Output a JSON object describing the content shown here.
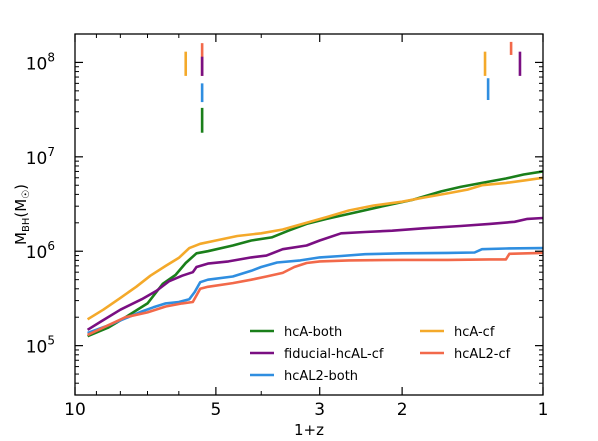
{
  "chart_data": {
    "type": "line",
    "xlabel": "1+z",
    "ylabel_main": "M",
    "ylabel_sub": "BH",
    "ylabel_unit": "(M",
    "ylabel_sun": "☉",
    "ylabel_close": ")",
    "x_scale": "log-reversed",
    "y_scale": "log",
    "xlim": [
      10,
      1
    ],
    "ylim": [
      30000,
      200000000
    ],
    "x_ticks": [
      {
        "value": 10,
        "label": "10"
      },
      {
        "value": 5,
        "label": "5"
      },
      {
        "value": 3,
        "label": "3"
      },
      {
        "value": 2,
        "label": "2"
      },
      {
        "value": 1,
        "label": "1"
      }
    ],
    "y_ticks": [
      {
        "value": 100000,
        "base": "10",
        "exp": "5"
      },
      {
        "value": 1000000,
        "base": "10",
        "exp": "6"
      },
      {
        "value": 10000000,
        "base": "10",
        "exp": "7"
      },
      {
        "value": 100000000,
        "base": "10",
        "exp": "8"
      }
    ],
    "grid": false,
    "legend_position": "lower-right",
    "series": [
      {
        "name": "hcA-both",
        "color": "#1a7f1a",
        "points": [
          [
            9.4,
            126000
          ],
          [
            8.5,
            155000
          ],
          [
            7.8,
            200000
          ],
          [
            7.0,
            280000
          ],
          [
            6.5,
            450000
          ],
          [
            6.1,
            560000
          ],
          [
            5.8,
            750000
          ],
          [
            5.5,
            950000
          ],
          [
            5.2,
            1000000
          ],
          [
            4.6,
            1150000
          ],
          [
            4.2,
            1300000
          ],
          [
            3.8,
            1400000
          ],
          [
            3.5,
            1650000
          ],
          [
            3.2,
            1950000
          ],
          [
            2.9,
            2200000
          ],
          [
            2.5,
            2600000
          ],
          [
            2.2,
            3000000
          ],
          [
            1.9,
            3500000
          ],
          [
            1.65,
            4300000
          ],
          [
            1.5,
            4800000
          ],
          [
            1.35,
            5300000
          ],
          [
            1.2,
            5900000
          ],
          [
            1.1,
            6500000
          ],
          [
            1.0,
            7000000
          ]
        ]
      },
      {
        "name": "fiducial-hcAL-cf",
        "color": "#7a0f82",
        "points": [
          [
            9.4,
            147000
          ],
          [
            8.8,
            180000
          ],
          [
            8.0,
            240000
          ],
          [
            7.2,
            310000
          ],
          [
            6.7,
            380000
          ],
          [
            6.3,
            480000
          ],
          [
            5.9,
            550000
          ],
          [
            5.6,
            600000
          ],
          [
            5.5,
            680000
          ],
          [
            5.2,
            740000
          ],
          [
            4.7,
            780000
          ],
          [
            4.2,
            860000
          ],
          [
            3.9,
            900000
          ],
          [
            3.6,
            1050000
          ],
          [
            3.2,
            1150000
          ],
          [
            3.0,
            1300000
          ],
          [
            2.7,
            1550000
          ],
          [
            2.4,
            1600000
          ],
          [
            2.1,
            1650000
          ],
          [
            1.8,
            1750000
          ],
          [
            1.5,
            1850000
          ],
          [
            1.3,
            1950000
          ],
          [
            1.15,
            2050000
          ],
          [
            1.08,
            2200000
          ],
          [
            1.0,
            2250000
          ]
        ]
      },
      {
        "name": "hcAL2-both",
        "color": "#2f8ee0",
        "points": [
          [
            9.4,
            136000
          ],
          [
            8.6,
            160000
          ],
          [
            7.8,
            195000
          ],
          [
            7.2,
            230000
          ],
          [
            6.8,
            255000
          ],
          [
            6.4,
            280000
          ],
          [
            6.0,
            290000
          ],
          [
            5.7,
            310000
          ],
          [
            5.55,
            370000
          ],
          [
            5.4,
            470000
          ],
          [
            5.2,
            500000
          ],
          [
            4.6,
            540000
          ],
          [
            4.2,
            620000
          ],
          [
            4.0,
            680000
          ],
          [
            3.7,
            760000
          ],
          [
            3.3,
            800000
          ],
          [
            3.0,
            860000
          ],
          [
            2.7,
            890000
          ],
          [
            2.4,
            930000
          ],
          [
            2.0,
            950000
          ],
          [
            1.6,
            960000
          ],
          [
            1.4,
            970000
          ],
          [
            1.35,
            1050000
          ],
          [
            1.2,
            1070000
          ],
          [
            1.0,
            1080000
          ]
        ]
      },
      {
        "name": "hcA-cf",
        "color": "#f4a92a",
        "points": [
          [
            9.4,
            190000
          ],
          [
            8.7,
            240000
          ],
          [
            8.0,
            320000
          ],
          [
            7.4,
            420000
          ],
          [
            6.9,
            550000
          ],
          [
            6.4,
            700000
          ],
          [
            6.0,
            850000
          ],
          [
            5.7,
            1080000
          ],
          [
            5.4,
            1200000
          ],
          [
            5.0,
            1300000
          ],
          [
            4.5,
            1450000
          ],
          [
            4.0,
            1550000
          ],
          [
            3.6,
            1700000
          ],
          [
            3.2,
            2000000
          ],
          [
            2.9,
            2300000
          ],
          [
            2.6,
            2700000
          ],
          [
            2.3,
            3050000
          ],
          [
            2.0,
            3350000
          ],
          [
            1.8,
            3700000
          ],
          [
            1.6,
            4100000
          ],
          [
            1.45,
            4500000
          ],
          [
            1.35,
            5000000
          ],
          [
            1.2,
            5300000
          ],
          [
            1.1,
            5600000
          ],
          [
            1.0,
            6000000
          ]
        ]
      },
      {
        "name": "hcAL2-cf",
        "color": "#f2694a",
        "points": [
          [
            9.4,
            130000
          ],
          [
            8.6,
            160000
          ],
          [
            7.8,
            200000
          ],
          [
            7.0,
            225000
          ],
          [
            6.4,
            260000
          ],
          [
            5.9,
            280000
          ],
          [
            5.6,
            290000
          ],
          [
            5.4,
            400000
          ],
          [
            5.2,
            420000
          ],
          [
            4.6,
            460000
          ],
          [
            4.2,
            500000
          ],
          [
            3.9,
            540000
          ],
          [
            3.6,
            590000
          ],
          [
            3.4,
            680000
          ],
          [
            3.2,
            750000
          ],
          [
            3.0,
            780000
          ],
          [
            2.6,
            800000
          ],
          [
            2.0,
            810000
          ],
          [
            1.6,
            810000
          ],
          [
            1.3,
            820000
          ],
          [
            1.2,
            820000
          ],
          [
            1.18,
            940000
          ],
          [
            1.08,
            950000
          ],
          [
            1.0,
            960000
          ]
        ]
      }
    ],
    "markers": [
      {
        "x": 5.8,
        "ymin": 72000000,
        "ymax": 130000000,
        "color": "#f4a92a"
      },
      {
        "x": 5.35,
        "ymin": 72000000,
        "ymax": 160000000,
        "color": "#f2694a"
      },
      {
        "x": 5.35,
        "ymin": 72000000,
        "ymax": 115000000,
        "color": "#7a0f82"
      },
      {
        "x": 5.35,
        "ymin": 38000000,
        "ymax": 60000000,
        "color": "#2f8ee0"
      },
      {
        "x": 5.35,
        "ymin": 18000000,
        "ymax": 33000000,
        "color": "#1a7f1a"
      },
      {
        "x": 1.33,
        "ymin": 72000000,
        "ymax": 130000000,
        "color": "#f4a92a"
      },
      {
        "x": 1.17,
        "ymin": 120000000,
        "ymax": 165000000,
        "color": "#f2694a"
      },
      {
        "x": 1.12,
        "ymin": 72000000,
        "ymax": 130000000,
        "color": "#7a0f82"
      },
      {
        "x": 1.31,
        "ymin": 40000000,
        "ymax": 68000000,
        "color": "#2f8ee0"
      }
    ]
  }
}
